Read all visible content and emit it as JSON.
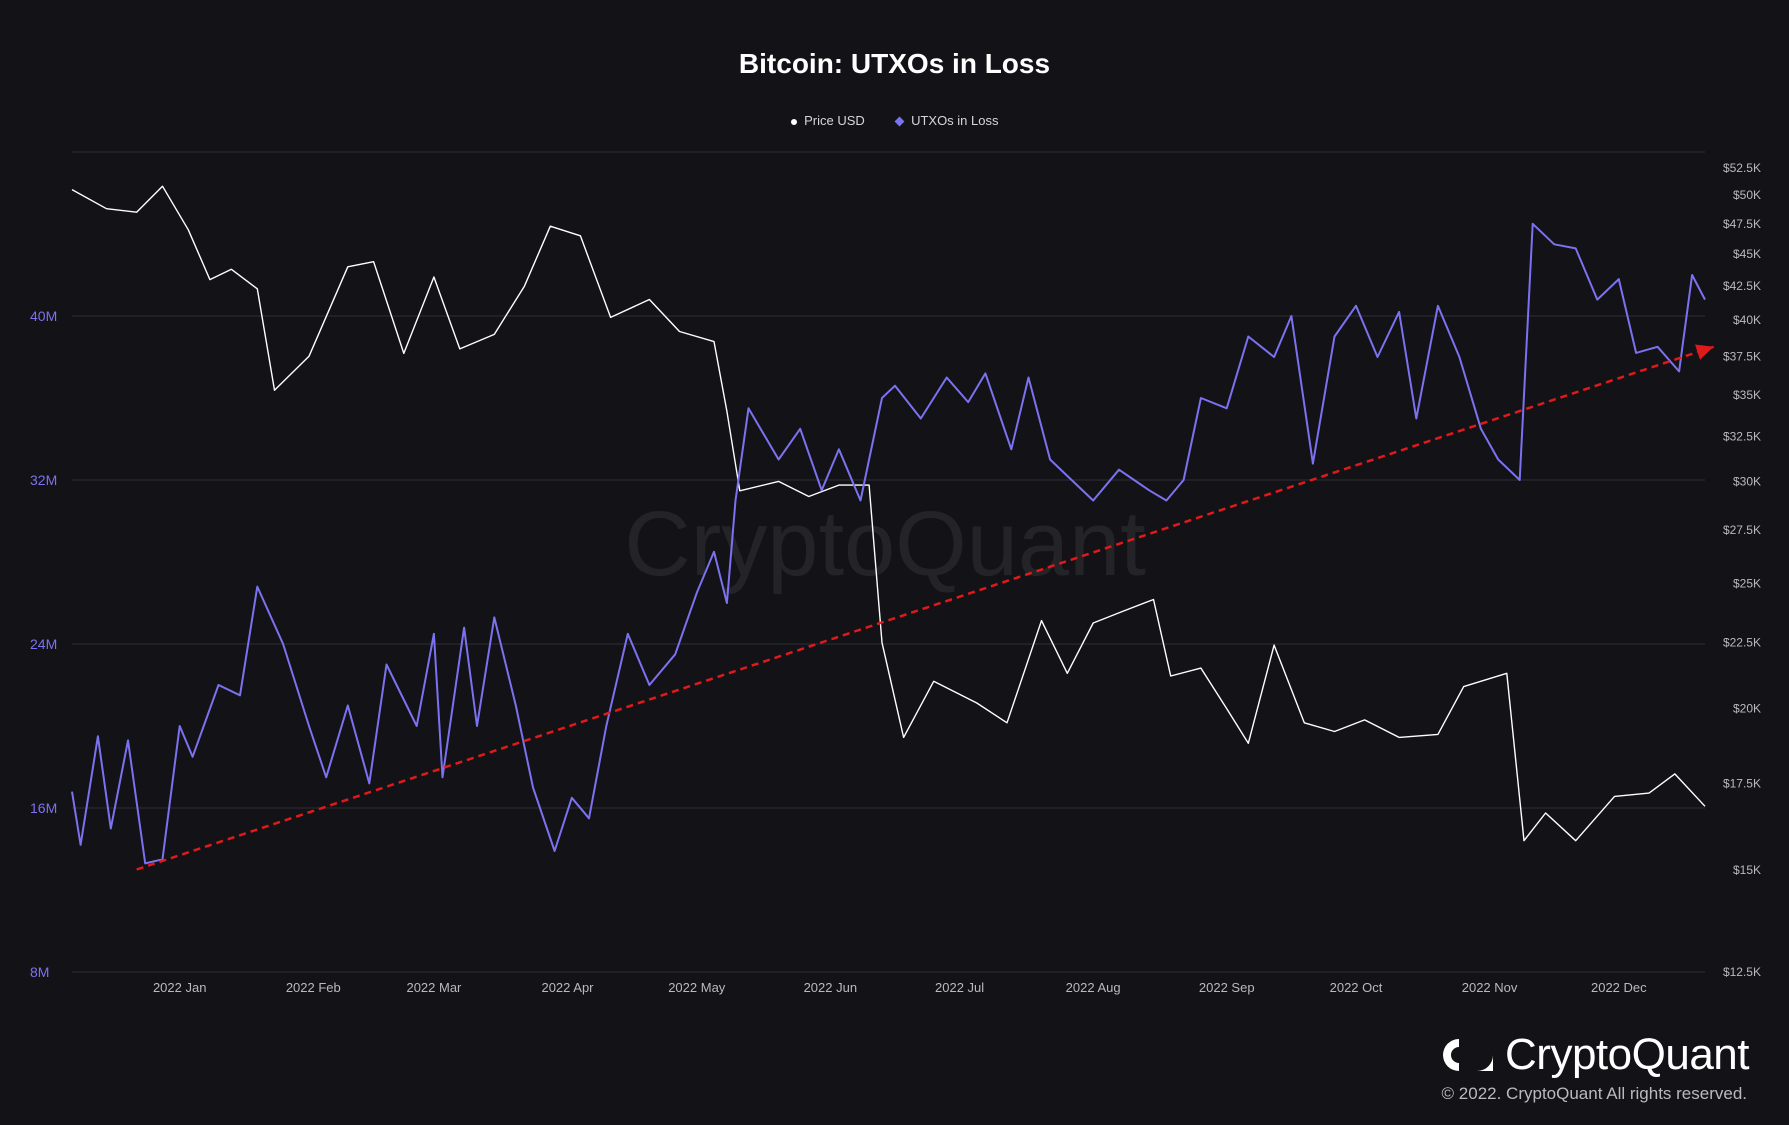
{
  "chart_data": {
    "type": "line",
    "title": "Bitcoin: UTXOs in Loss",
    "legend_position": "top-center",
    "legend": [
      {
        "label": "Price USD",
        "marker": "dot",
        "color": "#ffffff"
      },
      {
        "label": "UTXOs in Loss",
        "marker": "diamond",
        "color": "#7b72f0"
      }
    ],
    "x_ticks": [
      "2022 Jan",
      "2022 Feb",
      "2022 Mar",
      "2022 Apr",
      "2022 May",
      "2022 Jun",
      "2022 Jul",
      "2022 Aug",
      "2022 Sep",
      "2022 Oct",
      "2022 Nov",
      "2022 Dec"
    ],
    "x_range": [
      "2021-12-07",
      "2022-12-21"
    ],
    "y_left": {
      "ticks": [
        "8M",
        "16M",
        "24M",
        "32M",
        "40M"
      ],
      "range": [
        8000000,
        48000000
      ],
      "color": "#7b72f0"
    },
    "y_right": {
      "scale": "log",
      "ticks": [
        "$12.5K",
        "$15K",
        "$17.5K",
        "$20K",
        "$22.5K",
        "$25K",
        "$27.5K",
        "$30K",
        "$32.5K",
        "$35K",
        "$37.5K",
        "$40K",
        "$42.5K",
        "$45K",
        "$47.5K",
        "$50K",
        "$52.5K"
      ],
      "range": [
        12500,
        54000
      ],
      "color": "#b9b9bf"
    },
    "grid": "horizontal",
    "series": [
      {
        "name": "Price USD",
        "color": "#ffffff",
        "axis": "right",
        "points": [
          [
            "2021-12-07",
            50500
          ],
          [
            "2021-12-15",
            48800
          ],
          [
            "2021-12-22",
            48500
          ],
          [
            "2021-12-28",
            50800
          ],
          [
            "2022-01-03",
            47000
          ],
          [
            "2022-01-08",
            43000
          ],
          [
            "2022-01-13",
            43800
          ],
          [
            "2022-01-19",
            42300
          ],
          [
            "2022-01-23",
            35300
          ],
          [
            "2022-01-31",
            37500
          ],
          [
            "2022-02-09",
            44000
          ],
          [
            "2022-02-15",
            44400
          ],
          [
            "2022-02-22",
            37700
          ],
          [
            "2022-03-01",
            43200
          ],
          [
            "2022-03-07",
            38000
          ],
          [
            "2022-03-15",
            39000
          ],
          [
            "2022-03-22",
            42500
          ],
          [
            "2022-03-28",
            47300
          ],
          [
            "2022-04-04",
            46500
          ],
          [
            "2022-04-11",
            40200
          ],
          [
            "2022-04-20",
            41500
          ],
          [
            "2022-04-27",
            39200
          ],
          [
            "2022-05-05",
            38500
          ],
          [
            "2022-05-08",
            34000
          ],
          [
            "2022-05-11",
            29500
          ],
          [
            "2022-05-20",
            30000
          ],
          [
            "2022-05-27",
            29200
          ],
          [
            "2022-06-03",
            29800
          ],
          [
            "2022-06-10",
            29800
          ],
          [
            "2022-06-13",
            22500
          ],
          [
            "2022-06-18",
            19000
          ],
          [
            "2022-06-25",
            21000
          ],
          [
            "2022-07-05",
            20200
          ],
          [
            "2022-07-12",
            19500
          ],
          [
            "2022-07-20",
            23400
          ],
          [
            "2022-07-26",
            21300
          ],
          [
            "2022-08-01",
            23300
          ],
          [
            "2022-08-08",
            23800
          ],
          [
            "2022-08-15",
            24300
          ],
          [
            "2022-08-19",
            21200
          ],
          [
            "2022-08-26",
            21500
          ],
          [
            "2022-09-01",
            20000
          ],
          [
            "2022-09-06",
            18800
          ],
          [
            "2022-09-12",
            22400
          ],
          [
            "2022-09-19",
            19500
          ],
          [
            "2022-09-26",
            19200
          ],
          [
            "2022-10-03",
            19600
          ],
          [
            "2022-10-11",
            19000
          ],
          [
            "2022-10-20",
            19100
          ],
          [
            "2022-10-26",
            20800
          ],
          [
            "2022-11-05",
            21300
          ],
          [
            "2022-11-09",
            15800
          ],
          [
            "2022-11-14",
            16600
          ],
          [
            "2022-11-21",
            15800
          ],
          [
            "2022-11-30",
            17100
          ],
          [
            "2022-12-08",
            17200
          ],
          [
            "2022-12-14",
            17800
          ],
          [
            "2022-12-21",
            16800
          ]
        ]
      },
      {
        "name": "UTXOs in Loss",
        "color": "#7b72f0",
        "axis": "left",
        "points": [
          [
            "2021-12-07",
            16800
          ],
          [
            "2021-12-09",
            14200
          ],
          [
            "2021-12-13",
            19500
          ],
          [
            "2021-12-16",
            15000
          ],
          [
            "2021-12-20",
            19300
          ],
          [
            "2021-12-24",
            13300
          ],
          [
            "2021-12-28",
            13500
          ],
          [
            "2022-01-01",
            20000
          ],
          [
            "2022-01-04",
            18500
          ],
          [
            "2022-01-10",
            22000
          ],
          [
            "2022-01-15",
            21500
          ],
          [
            "2022-01-19",
            26800
          ],
          [
            "2022-01-25",
            24000
          ],
          [
            "2022-01-31",
            20000
          ],
          [
            "2022-02-04",
            17500
          ],
          [
            "2022-02-09",
            21000
          ],
          [
            "2022-02-14",
            17200
          ],
          [
            "2022-02-18",
            23000
          ],
          [
            "2022-02-25",
            20000
          ],
          [
            "2022-03-01",
            24500
          ],
          [
            "2022-03-03",
            17500
          ],
          [
            "2022-03-08",
            24800
          ],
          [
            "2022-03-11",
            20000
          ],
          [
            "2022-03-15",
            25300
          ],
          [
            "2022-03-20",
            21000
          ],
          [
            "2022-03-24",
            17000
          ],
          [
            "2022-03-29",
            13900
          ],
          [
            "2022-04-02",
            16500
          ],
          [
            "2022-04-06",
            15500
          ],
          [
            "2022-04-10",
            20000
          ],
          [
            "2022-04-15",
            24500
          ],
          [
            "2022-04-20",
            22000
          ],
          [
            "2022-04-26",
            23500
          ],
          [
            "2022-05-01",
            26500
          ],
          [
            "2022-05-05",
            28500
          ],
          [
            "2022-05-08",
            26000
          ],
          [
            "2022-05-10",
            31000
          ],
          [
            "2022-05-13",
            35500
          ],
          [
            "2022-05-20",
            33000
          ],
          [
            "2022-05-25",
            34500
          ],
          [
            "2022-05-30",
            31500
          ],
          [
            "2022-06-03",
            33500
          ],
          [
            "2022-06-08",
            31000
          ],
          [
            "2022-06-13",
            36000
          ],
          [
            "2022-06-16",
            36600
          ],
          [
            "2022-06-22",
            35000
          ],
          [
            "2022-06-28",
            37000
          ],
          [
            "2022-07-03",
            35800
          ],
          [
            "2022-07-07",
            37200
          ],
          [
            "2022-07-13",
            33500
          ],
          [
            "2022-07-17",
            37000
          ],
          [
            "2022-07-22",
            33000
          ],
          [
            "2022-07-27",
            32000
          ],
          [
            "2022-08-01",
            31000
          ],
          [
            "2022-08-07",
            32500
          ],
          [
            "2022-08-14",
            31500
          ],
          [
            "2022-08-18",
            31000
          ],
          [
            "2022-08-22",
            32000
          ],
          [
            "2022-08-26",
            36000
          ],
          [
            "2022-09-01",
            35500
          ],
          [
            "2022-09-06",
            39000
          ],
          [
            "2022-09-12",
            38000
          ],
          [
            "2022-09-16",
            40000
          ],
          [
            "2022-09-21",
            32800
          ],
          [
            "2022-09-26",
            39000
          ],
          [
            "2022-10-01",
            40500
          ],
          [
            "2022-10-06",
            38000
          ],
          [
            "2022-10-11",
            40200
          ],
          [
            "2022-10-15",
            35000
          ],
          [
            "2022-10-20",
            40500
          ],
          [
            "2022-10-25",
            38000
          ],
          [
            "2022-10-30",
            34500
          ],
          [
            "2022-11-03",
            33000
          ],
          [
            "2022-11-08",
            32000
          ],
          [
            "2022-11-11",
            44500
          ],
          [
            "2022-11-16",
            43500
          ],
          [
            "2022-11-21",
            43300
          ],
          [
            "2022-11-26",
            40800
          ],
          [
            "2022-12-01",
            41800
          ],
          [
            "2022-12-05",
            38200
          ],
          [
            "2022-12-10",
            38500
          ],
          [
            "2022-12-15",
            37300
          ],
          [
            "2022-12-18",
            42000
          ],
          [
            "2022-12-21",
            40800
          ]
        ]
      }
    ],
    "annotations": [
      {
        "type": "trend-arrow",
        "style": "dashed",
        "color": "#e0191a",
        "from": [
          "2021-12-22",
          13000
        ],
        "to": [
          "2022-12-23",
          38500
        ]
      }
    ],
    "watermark": "CryptoQuant"
  },
  "brand": {
    "name": "CryptoQuant",
    "copyright": "© 2022. CryptoQuant All rights reserved."
  }
}
